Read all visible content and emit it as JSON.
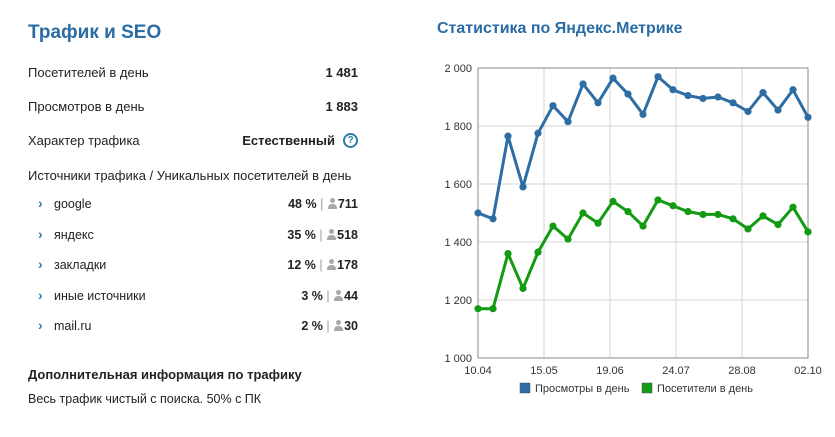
{
  "left": {
    "title": "Трафик и SEO",
    "visitors_label": "Посетителей в день",
    "visitors_value": "1 481",
    "views_label": "Просмотров в день",
    "views_value": "1 883",
    "traffic_type_label": "Характер трафика",
    "traffic_type_value": "Естественный",
    "help_glyph": "?",
    "sources_header": "Источники трафика / Уникальных посетителей в день",
    "sources": [
      {
        "name": "google",
        "percent": "48 %",
        "users": "711"
      },
      {
        "name": "яндекс",
        "percent": "35 %",
        "users": "518"
      },
      {
        "name": "закладки",
        "percent": "12 %",
        "users": "178"
      },
      {
        "name": "иные источники",
        "percent": "3 %",
        "users": "44"
      },
      {
        "name": "mail.ru",
        "percent": "2 %",
        "users": "30"
      }
    ],
    "chevron_glyph": "›",
    "separator": "|",
    "additional_header": "Дополнительная информация по трафику",
    "additional_text": "Весь трафик чистый с поиска. 50% с ПК"
  },
  "chart": {
    "title": "Статистика по Яндекс.Метрике"
  },
  "chart_data": {
    "type": "line",
    "x_tick_labels": [
      "10.04",
      "15.05",
      "19.06",
      "24.07",
      "28.08",
      "02.10"
    ],
    "ylim": [
      1000,
      2000
    ],
    "y_ticks": [
      1000,
      1200,
      1400,
      1600,
      1800,
      2000
    ],
    "y_tick_labels": [
      "1 000",
      "1 200",
      "1 400",
      "1 600",
      "1 800",
      "2 000"
    ],
    "grid": true,
    "legend_position": "bottom",
    "series": [
      {
        "name": "Просмотры в день",
        "color": "#2e6da4",
        "values": [
          1500,
          1480,
          1765,
          1590,
          1775,
          1870,
          1815,
          1945,
          1880,
          1965,
          1910,
          1840,
          1970,
          1925,
          1905,
          1895,
          1900,
          1880,
          1850,
          1915,
          1855,
          1925,
          1830
        ]
      },
      {
        "name": "Посетители в день",
        "color": "#139a13",
        "values": [
          1170,
          1170,
          1360,
          1240,
          1365,
          1455,
          1410,
          1500,
          1465,
          1540,
          1505,
          1455,
          1545,
          1525,
          1505,
          1495,
          1495,
          1480,
          1445,
          1490,
          1460,
          1520,
          1435
        ]
      }
    ]
  }
}
